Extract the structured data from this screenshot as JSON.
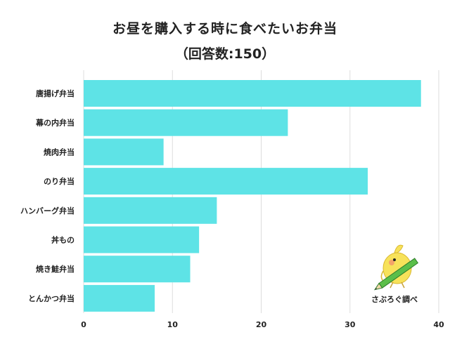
{
  "chart_data": {
    "type": "bar",
    "orientation": "horizontal",
    "title": "お昼を購入する時に食べたいお弁当",
    "subtitle": "（回答数:150）",
    "categories": [
      "唐揚げ弁当",
      "幕の内弁当",
      "焼肉弁当",
      "のり弁当",
      "ハンバーグ弁当",
      "丼もの",
      "焼き鮭弁当",
      "とんかつ弁当"
    ],
    "values": [
      38,
      23,
      9,
      32,
      15,
      13,
      12,
      8
    ],
    "xlim": [
      0,
      40
    ],
    "xticks": [
      0,
      10,
      20,
      30,
      40
    ],
    "grid": true,
    "bar_color": "#5ee3e6",
    "grid_color": "#dddddd"
  },
  "watermark": "さぶろぐ調べ",
  "mascot_icon": "bird-with-pencil-icon"
}
